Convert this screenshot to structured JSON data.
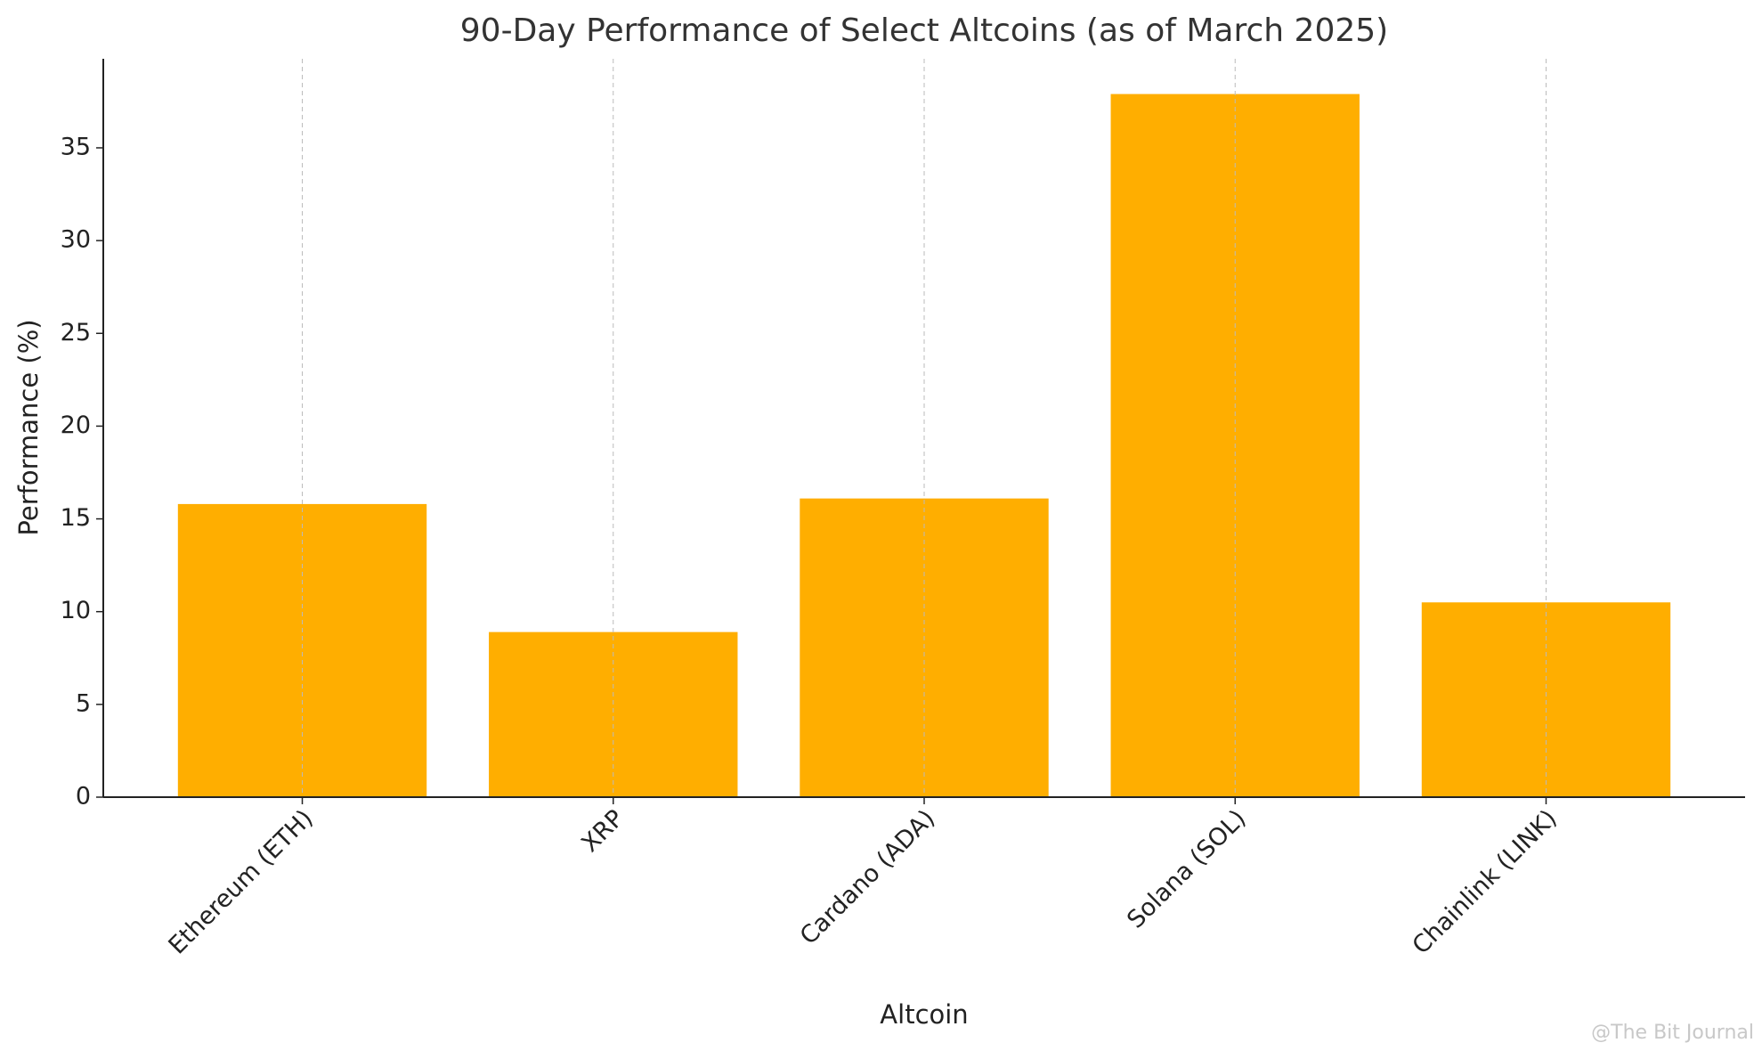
{
  "chart_data": {
    "type": "bar",
    "title": "90-Day Performance of Select Altcoins (as of March 2025)",
    "x_label": "Altcoin",
    "y_label": "Performance (%)",
    "categories": [
      "Ethereum (ETH)",
      "XRP",
      "Cardano (ADA)",
      "Solana (SOL)",
      "Chainlink (LINK)"
    ],
    "values": [
      15.8,
      8.9,
      16.1,
      37.9,
      10.5
    ],
    "color": "#ffae00",
    "ylim": [
      0,
      39.8
    ],
    "yticks": [
      0,
      5,
      10,
      15,
      20,
      25,
      30,
      35
    ],
    "grid": "x",
    "watermark": "@The Bit Journal"
  }
}
